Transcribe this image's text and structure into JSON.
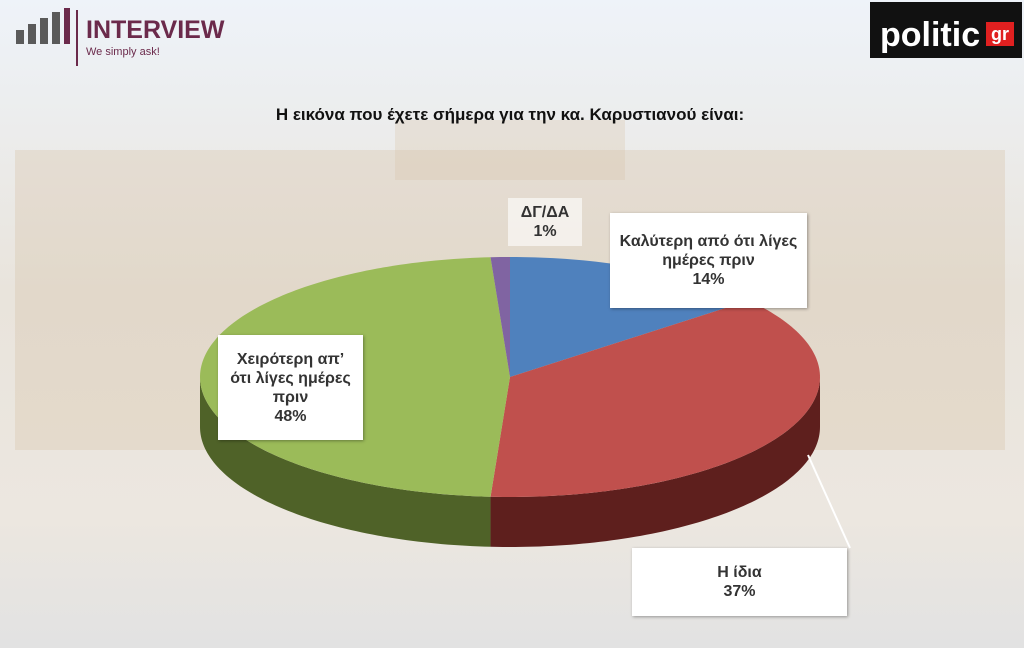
{
  "header": {
    "brand": "INTERVIEW",
    "tagline": "We simply ask!",
    "partner": "politic",
    "partner_suffix": "gr"
  },
  "chart_data": {
    "type": "pie",
    "title": "Η εικόνα που έχετε σήμερα για την κα. Καρυστιανού είναι:",
    "categories": [
      "Καλύτερη από ότι λίγες ημέρες πριν",
      "Η ίδια",
      "Χειρότερη απ’ ότι λίγες ημέρες πριν",
      "ΔΓ/ΔΑ"
    ],
    "values": [
      14,
      37,
      48,
      1
    ],
    "value_labels": [
      "14%",
      "37%",
      "48%",
      "1%"
    ],
    "colors": [
      "#4f81bd",
      "#c0504d",
      "#9bbb59",
      "#8064a2"
    ],
    "side_colors": [
      "#2c4d75",
      "#5e1f1d",
      "#4f6228",
      "#403152"
    ]
  }
}
